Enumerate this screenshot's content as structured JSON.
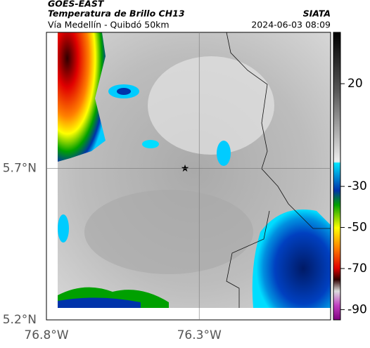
{
  "header": {
    "title": "GOES-EAST",
    "subtitle": "Temperatura de Brillo CH13",
    "region": "Vía Medellín - Quibdó 50km",
    "source": "SIATA",
    "datetime": "2024-06-03 08:09"
  },
  "map": {
    "lon_range": [
      -76.8,
      -75.87
    ],
    "lat_range": [
      5.2,
      6.15
    ],
    "lon_ticks": [
      {
        "value": -76.8,
        "label": "76.8°W"
      },
      {
        "value": -76.3,
        "label": "76.3°W"
      }
    ],
    "lat_ticks": [
      {
        "value": 5.7,
        "label": "5.7°N"
      },
      {
        "value": 5.2,
        "label": "5.2°N"
      }
    ]
  },
  "colorbar": {
    "range": [
      -95,
      45
    ],
    "ticks": [
      20,
      -30,
      -50,
      -70,
      -90
    ]
  }
}
